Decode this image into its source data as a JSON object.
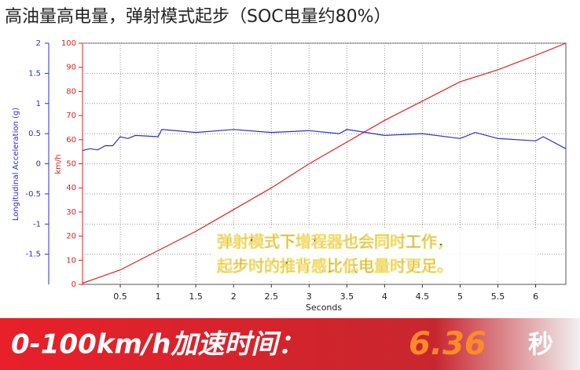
{
  "chart_data": {
    "type": "line",
    "title": "高油量高电量，弹射模式起步（SOC电量约80%）",
    "xlabel": "Seconds",
    "ylabel": "Longitudinal Acceleration (g)",
    "y2label": "km/h",
    "xlim": [
      0,
      6.4
    ],
    "xticks": [
      0.5,
      1,
      1.5,
      2,
      2.5,
      3,
      3.5,
      4,
      4.5,
      5,
      5.5,
      6
    ],
    "ylim": [
      -2,
      2
    ],
    "yticks": [
      -1.5,
      -1,
      -0.5,
      0,
      0.5,
      1,
      1.5,
      2
    ],
    "y2lim": [
      0,
      100
    ],
    "y2ticks": [
      0,
      10,
      20,
      30,
      40,
      50,
      60,
      70,
      80,
      90,
      100
    ],
    "grid": true,
    "series": [
      {
        "name": "km/h",
        "color": "#e0201a",
        "axis": "y2",
        "x": [
          0,
          0.5,
          1,
          1.5,
          2,
          2.5,
          3,
          3.5,
          4,
          4.5,
          5,
          5.5,
          6,
          6.4
        ],
        "values": [
          0.5,
          6,
          14,
          22,
          31,
          40,
          50,
          59,
          68,
          76,
          84,
          89,
          95,
          100
        ]
      },
      {
        "name": "Longitudinal Acceleration (g)",
        "color": "#2b2fc8",
        "axis": "y",
        "x": [
          0,
          0.1,
          0.2,
          0.3,
          0.4,
          0.5,
          0.6,
          0.7,
          1.0,
          1.05,
          1.5,
          2,
          2.5,
          3,
          3.4,
          3.5,
          4,
          4.5,
          5,
          5.2,
          5.5,
          6,
          6.1,
          6.4
        ],
        "values": [
          0.22,
          0.25,
          0.23,
          0.3,
          0.3,
          0.45,
          0.42,
          0.47,
          0.45,
          0.57,
          0.52,
          0.57,
          0.52,
          0.55,
          0.5,
          0.57,
          0.47,
          0.5,
          0.42,
          0.52,
          0.42,
          0.38,
          0.45,
          0.25
        ]
      }
    ],
    "annotation": [
      "弹射模式下增程器也会同时工作，",
      "起步时的推背感比低电量时更足。"
    ],
    "banner": {
      "label": "0-100km/h加速时间：",
      "value": "6.36",
      "unit": "秒"
    }
  }
}
